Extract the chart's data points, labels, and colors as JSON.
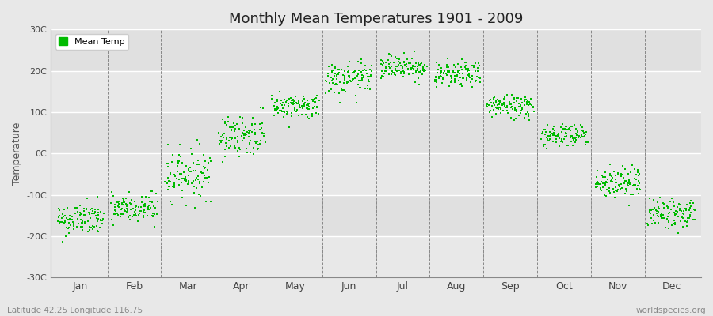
{
  "title": "Monthly Mean Temperatures 1901 - 2009",
  "ylabel": "Temperature",
  "xlabel_bottom_left": "Latitude 42.25 Longitude 116.75",
  "xlabel_bottom_right": "worldspecies.org",
  "ylim": [
    -30,
    30
  ],
  "yticks": [
    -30,
    -20,
    -10,
    0,
    10,
    20,
    30
  ],
  "ytick_labels": [
    "-30C",
    "-20C",
    "-10C",
    "0C",
    "10C",
    "20C",
    "30C"
  ],
  "months": [
    "Jan",
    "Feb",
    "Mar",
    "Apr",
    "May",
    "Jun",
    "Jul",
    "Aug",
    "Sep",
    "Oct",
    "Nov",
    "Dec"
  ],
  "dot_color": "#00bb00",
  "dot_size": 2.5,
  "background_color": "#e8e8e8",
  "plot_bg_color": "#e8e8e8",
  "legend_label": "Mean Temp",
  "grid_color": "#888888",
  "mean_temps": [
    -16.0,
    -13.5,
    -5.0,
    4.5,
    11.5,
    18.0,
    21.0,
    19.0,
    11.5,
    4.5,
    -7.0,
    -14.5
  ],
  "temp_spread": [
    2.0,
    2.0,
    3.0,
    2.5,
    1.5,
    2.0,
    1.5,
    1.5,
    1.5,
    1.5,
    2.0,
    1.8
  ],
  "n_years": 109,
  "stripe_colors": [
    "#e8e8e8",
    "#e0e0e0"
  ]
}
